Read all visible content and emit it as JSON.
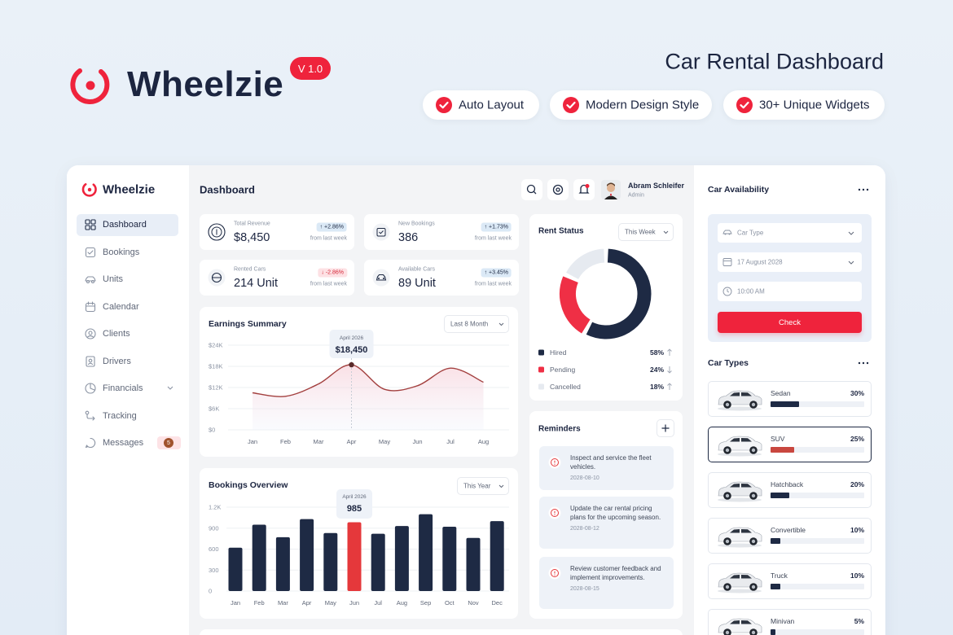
{
  "hero": {
    "brand": "Wheelzie",
    "version": "V 1.0",
    "title": "Car Rental Dashboard",
    "features": [
      "Auto Layout",
      "Modern Design Style",
      "30+ Unique Widgets"
    ]
  },
  "sidebar": {
    "brand": "Wheelzie",
    "nav": [
      {
        "label": "Dashboard",
        "active": true
      },
      {
        "label": "Bookings"
      },
      {
        "label": "Units"
      },
      {
        "label": "Calendar"
      },
      {
        "label": "Clients"
      },
      {
        "label": "Drivers"
      },
      {
        "label": "Financials",
        "submenu": true
      },
      {
        "label": "Tracking"
      },
      {
        "label": "Messages",
        "badge": 5
      }
    ]
  },
  "header": {
    "title": "Dashboard",
    "user": {
      "name": "Abram Schleifer",
      "role": "Admin"
    }
  },
  "stats": [
    {
      "label": "Total Revenue",
      "value": "$8,450",
      "change": "↑ +2.86%",
      "trend": "up",
      "note": "from last week"
    },
    {
      "label": "New Bookings",
      "value": "386",
      "change": "↑ +1.73%",
      "trend": "up",
      "note": "from last week"
    },
    {
      "label": "Rented Cars",
      "value": "214 Unit",
      "change": "↓ -2.86%",
      "trend": "down",
      "note": "from last week"
    },
    {
      "label": "Available Cars",
      "value": "89 Unit",
      "change": "↑ +3.45%",
      "trend": "up",
      "note": "from last week"
    }
  ],
  "chart_data": [
    {
      "type": "line",
      "title": "Earnings Summary",
      "filter": "Last 8 Month",
      "categories": [
        "Jan",
        "Feb",
        "Mar",
        "Apr",
        "May",
        "Jun",
        "Jul",
        "Aug"
      ],
      "values": [
        10500,
        9500,
        13000,
        18450,
        11500,
        12500,
        17500,
        13500
      ],
      "color": "#a3403f",
      "ylim": [
        0,
        24000
      ],
      "yticks": [
        {
          "value": 0,
          "label": "$0"
        },
        {
          "value": 6000,
          "label": "$6K"
        },
        {
          "value": 12000,
          "label": "$12K"
        },
        {
          "value": 18000,
          "label": "$18K"
        },
        {
          "value": 24000,
          "label": "$24K"
        }
      ],
      "grid": true,
      "highlight": 3,
      "tooltip": {
        "title": "April 2026",
        "value_label": "$18,450"
      }
    },
    {
      "type": "bar",
      "title": "Bookings Overview",
      "filter": "This Year",
      "categories": [
        "Jan",
        "Feb",
        "Mar",
        "Apr",
        "May",
        "Jun",
        "Jul",
        "Aug",
        "Sep",
        "Oct",
        "Nov",
        "Dec"
      ],
      "values": [
        620,
        950,
        770,
        1030,
        830,
        985,
        820,
        930,
        1100,
        920,
        760,
        1000
      ],
      "color": "#1e2a44",
      "highlight_color": "#e5383b",
      "ylim": [
        0,
        1200
      ],
      "yticks": [
        0,
        300,
        600,
        900,
        {
          "value": 1200,
          "label": "1.2K"
        }
      ],
      "grid": true,
      "highlight": 5,
      "tooltip": {
        "title": "April 2026"
      }
    },
    {
      "type": "pie",
      "title": "Rent Status",
      "filter": "This Week",
      "categories": [
        "Hired",
        "Pending",
        "Cancelled"
      ],
      "values": [
        58,
        24,
        18
      ],
      "value_labels": [
        "58%",
        "24%",
        "18%"
      ],
      "colors": [
        "#1e2a44",
        "#ef2f45",
        "#e6eaf0"
      ],
      "trends": [
        "up",
        "down",
        "up"
      ],
      "donut": true
    }
  ],
  "reminders": {
    "title": "Reminders",
    "items": [
      {
        "text": "Inspect and service the fleet vehicles.",
        "date": "2028-08-10"
      },
      {
        "text": "Update the car rental pricing plans for the upcoming season.",
        "date": "2028-08-12"
      },
      {
        "text": "Review customer feedback and implement improvements.",
        "date": "2028-08-15"
      }
    ]
  },
  "availability": {
    "title": "Car Availability",
    "fields": [
      "Car Type",
      "17 August 2028",
      "10:00 AM"
    ],
    "button": "Check"
  },
  "car_types": {
    "title": "Car Types",
    "selected": 1,
    "items": [
      {
        "name": "Sedan",
        "share": 30,
        "share_label": "30%"
      },
      {
        "name": "SUV",
        "share": 25,
        "share_label": "25%"
      },
      {
        "name": "Hatchback",
        "share": 20,
        "share_label": "20%"
      },
      {
        "name": "Convertible",
        "share": 10,
        "share_label": "10%"
      },
      {
        "name": "Truck",
        "share": 10,
        "share_label": "10%"
      },
      {
        "name": "Minivan",
        "share": 5,
        "share_label": "5%"
      }
    ]
  }
}
